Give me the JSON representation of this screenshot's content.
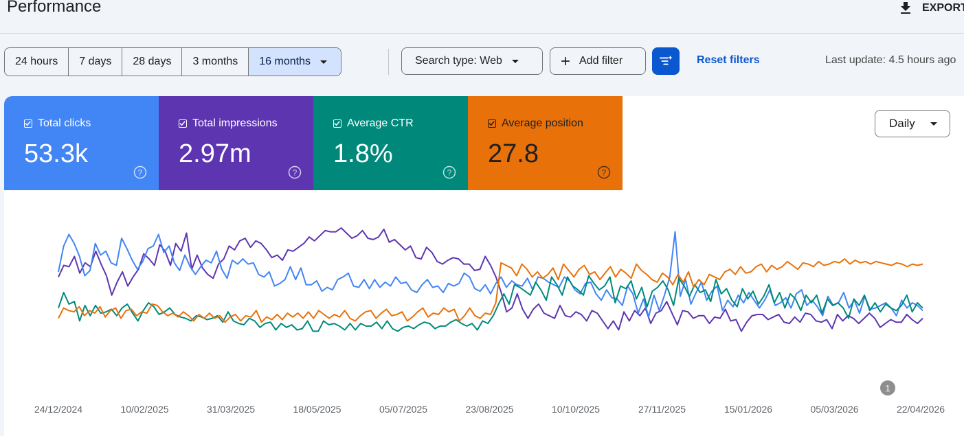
{
  "header": {
    "title": "Performance",
    "export_label": "EXPORT"
  },
  "date_ranges": [
    {
      "label": "24 hours",
      "selected": false
    },
    {
      "label": "7 days",
      "selected": false
    },
    {
      "label": "28 days",
      "selected": false
    },
    {
      "label": "3 months",
      "selected": false
    },
    {
      "label": "16 months",
      "selected": true
    }
  ],
  "toolbar": {
    "search_type_label": "Search type: Web",
    "add_filter_label": "Add filter",
    "reset_filters_label": "Reset filters",
    "last_update": "Last update: 4.5 hours ago"
  },
  "metrics": [
    {
      "label": "Total clicks",
      "value": "53.3k",
      "color": "#4285f4",
      "text_color": "#ffffff"
    },
    {
      "label": "Total impressions",
      "value": "2.97m",
      "color": "#5e35b1",
      "text_color": "#ffffff"
    },
    {
      "label": "Average CTR",
      "value": "1.8%",
      "color": "#00897b",
      "text_color": "#ffffff"
    },
    {
      "label": "Average position",
      "value": "27.8",
      "color": "#e8710a",
      "text_color": "#1f1f1f"
    }
  ],
  "granularity": {
    "selected": "Daily"
  },
  "chart_data": {
    "type": "line",
    "x_tick_labels": [
      "24/12/2024",
      "10/02/2025",
      "31/03/2025",
      "18/05/2025",
      "05/07/2025",
      "23/08/2025",
      "10/10/2025",
      "27/11/2025",
      "15/01/2026",
      "05/03/2026",
      "22/04/2026"
    ],
    "annotation_badge": "1",
    "grid": false,
    "series": [
      {
        "color": "#5e35b1",
        "values": [
          0.62,
          0.71,
          0.7,
          0.78,
          0.65,
          0.73,
          0.7,
          0.82,
          0.72,
          0.63,
          0.48,
          0.58,
          0.66,
          0.55,
          0.62,
          0.68,
          0.8,
          0.76,
          0.71,
          0.87,
          0.82,
          0.71,
          0.88,
          0.82,
          0.96,
          0.68,
          0.79,
          0.69,
          0.64,
          0.61,
          0.72,
          0.76,
          0.86,
          0.83,
          0.9,
          0.92,
          0.85,
          0.9,
          0.88,
          0.83,
          0.77,
          0.79,
          0.75,
          0.83,
          0.82,
          0.85,
          0.88,
          0.93,
          0.9,
          0.94,
          0.98,
          0.97,
          0.97,
          1.0,
          0.96,
          0.92,
          0.94,
          0.98,
          0.92,
          0.91,
          0.93,
          0.99,
          0.89,
          0.91,
          0.87,
          0.83,
          0.86,
          0.77,
          0.76,
          0.85,
          0.81,
          0.74,
          0.72,
          0.75,
          0.77,
          0.76,
          0.72,
          0.72,
          0.67,
          0.68,
          0.78,
          0.71,
          0.62,
          0.5,
          0.35,
          0.38,
          0.49,
          0.37,
          0.3,
          0.37,
          0.41,
          0.34,
          0.32,
          0.3,
          0.4,
          0.32,
          0.31,
          0.35,
          0.33,
          0.28,
          0.36,
          0.34,
          0.28,
          0.22,
          0.28,
          0.21,
          0.35,
          0.28,
          0.36,
          0.32,
          0.38,
          0.26,
          0.34,
          0.36,
          0.43,
          0.34,
          0.25,
          0.36,
          0.35,
          0.3,
          0.32,
          0.32,
          0.26,
          0.31,
          0.3,
          0.37,
          0.28,
          0.29,
          0.2,
          0.27,
          0.32,
          0.33,
          0.33,
          0.29,
          0.31,
          0.33,
          0.27,
          0.26,
          0.31,
          0.27,
          0.34,
          0.33,
          0.28,
          0.27,
          0.29,
          0.22,
          0.33,
          0.28,
          0.32,
          0.3,
          0.26,
          0.3,
          0.34,
          0.3,
          0.23,
          0.26,
          0.29,
          0.27,
          0.27,
          0.33,
          0.29,
          0.26,
          0.3
        ]
      },
      {
        "color": "#4285f4",
        "values": [
          0.66,
          0.86,
          0.95,
          0.88,
          0.78,
          0.63,
          0.67,
          0.88,
          0.79,
          0.82,
          0.73,
          0.71,
          0.92,
          0.84,
          0.75,
          0.68,
          0.74,
          0.84,
          0.86,
          0.95,
          0.81,
          0.86,
          0.73,
          0.67,
          0.79,
          0.7,
          0.64,
          0.7,
          0.75,
          0.73,
          0.82,
          0.68,
          0.61,
          0.75,
          0.72,
          0.76,
          0.72,
          0.73,
          0.64,
          0.62,
          0.66,
          0.55,
          0.57,
          0.6,
          0.7,
          0.6,
          0.69,
          0.56,
          0.56,
          0.59,
          0.51,
          0.54,
          0.52,
          0.6,
          0.62,
          0.65,
          0.55,
          0.54,
          0.6,
          0.53,
          0.6,
          0.54,
          0.58,
          0.55,
          0.62,
          0.57,
          0.58,
          0.52,
          0.5,
          0.56,
          0.6,
          0.54,
          0.55,
          0.5,
          0.57,
          0.55,
          0.57,
          0.65,
          0.62,
          0.53,
          0.51,
          0.56,
          0.49,
          0.57,
          0.62,
          0.54,
          0.59,
          0.56,
          0.55,
          0.61,
          0.52,
          0.62,
          0.61,
          0.58,
          0.56,
          0.54,
          0.62,
          0.59,
          0.52,
          0.49,
          0.57,
          0.58,
          0.49,
          0.44,
          0.52,
          0.46,
          0.45,
          0.4,
          0.55,
          0.49,
          0.34,
          0.45,
          0.31,
          0.48,
          0.36,
          0.48,
          0.62,
          0.97,
          0.47,
          0.6,
          0.41,
          0.5,
          0.58,
          0.44,
          0.51,
          0.55,
          0.36,
          0.44,
          0.39,
          0.48,
          0.42,
          0.5,
          0.44,
          0.38,
          0.44,
          0.52,
          0.4,
          0.42,
          0.46,
          0.38,
          0.49,
          0.52,
          0.4,
          0.44,
          0.39,
          0.32,
          0.47,
          0.4,
          0.42,
          0.5,
          0.38,
          0.44,
          0.34,
          0.47,
          0.37,
          0.38,
          0.4,
          0.42,
          0.38,
          0.32,
          0.44,
          0.38,
          0.42,
          0.4,
          0.36
        ]
      },
      {
        "color": "#00897b",
        "values": [
          0.38,
          0.5,
          0.41,
          0.43,
          0.28,
          0.4,
          0.32,
          0.4,
          0.34,
          0.35,
          0.37,
          0.32,
          0.38,
          0.41,
          0.34,
          0.28,
          0.36,
          0.42,
          0.39,
          0.33,
          0.35,
          0.38,
          0.33,
          0.31,
          0.3,
          0.28,
          0.32,
          0.31,
          0.29,
          0.3,
          0.32,
          0.27,
          0.35,
          0.28,
          0.26,
          0.25,
          0.3,
          0.28,
          0.23,
          0.26,
          0.27,
          0.21,
          0.26,
          0.23,
          0.25,
          0.21,
          0.22,
          0.28,
          0.2,
          0.2,
          0.28,
          0.25,
          0.26,
          0.24,
          0.21,
          0.26,
          0.21,
          0.26,
          0.24,
          0.24,
          0.27,
          0.22,
          0.28,
          0.22,
          0.2,
          0.23,
          0.24,
          0.22,
          0.25,
          0.27,
          0.26,
          0.22,
          0.24,
          0.24,
          0.27,
          0.29,
          0.26,
          0.24,
          0.26,
          0.21,
          0.28,
          0.26,
          0.32,
          0.41,
          0.49,
          0.41,
          0.56,
          0.54,
          0.51,
          0.48,
          0.58,
          0.52,
          0.44,
          0.62,
          0.56,
          0.48,
          0.62,
          0.55,
          0.52,
          0.48,
          0.63,
          0.57,
          0.52,
          0.55,
          0.62,
          0.42,
          0.55,
          0.53,
          0.59,
          0.45,
          0.54,
          0.39,
          0.51,
          0.54,
          0.59,
          0.52,
          0.4,
          0.61,
          0.55,
          0.47,
          0.56,
          0.5,
          0.52,
          0.43,
          0.6,
          0.49,
          0.53,
          0.44,
          0.39,
          0.53,
          0.45,
          0.51,
          0.41,
          0.47,
          0.56,
          0.42,
          0.5,
          0.38,
          0.49,
          0.45,
          0.36,
          0.48,
          0.42,
          0.48,
          0.34,
          0.45,
          0.4,
          0.42,
          0.38,
          0.3,
          0.45,
          0.4,
          0.48,
          0.36,
          0.42,
          0.35,
          0.41,
          0.38,
          0.36,
          0.4,
          0.48,
          0.35,
          0.42,
          0.38
        ]
      },
      {
        "color": "#e8710a",
        "values": [
          0.3,
          0.38,
          0.36,
          0.35,
          0.39,
          0.32,
          0.36,
          0.34,
          0.39,
          0.31,
          0.36,
          0.38,
          0.3,
          0.36,
          0.37,
          0.32,
          0.35,
          0.34,
          0.41,
          0.4,
          0.35,
          0.32,
          0.34,
          0.31,
          0.35,
          0.32,
          0.28,
          0.33,
          0.3,
          0.34,
          0.3,
          0.32,
          0.27,
          0.31,
          0.33,
          0.28,
          0.32,
          0.31,
          0.36,
          0.27,
          0.31,
          0.29,
          0.33,
          0.29,
          0.34,
          0.31,
          0.34,
          0.3,
          0.35,
          0.3,
          0.36,
          0.33,
          0.3,
          0.33,
          0.31,
          0.36,
          0.3,
          0.28,
          0.32,
          0.35,
          0.36,
          0.3,
          0.34,
          0.37,
          0.32,
          0.33,
          0.35,
          0.28,
          0.31,
          0.35,
          0.38,
          0.31,
          0.34,
          0.33,
          0.38,
          0.35,
          0.37,
          0.28,
          0.32,
          0.38,
          0.32,
          0.3,
          0.34,
          0.33,
          0.42,
          0.73,
          0.71,
          0.69,
          0.63,
          0.72,
          0.68,
          0.62,
          0.66,
          0.61,
          0.64,
          0.69,
          0.6,
          0.72,
          0.67,
          0.62,
          0.68,
          0.71,
          0.64,
          0.66,
          0.6,
          0.65,
          0.7,
          0.62,
          0.68,
          0.65,
          0.61,
          0.72,
          0.67,
          0.64,
          0.6,
          0.58,
          0.65,
          0.62,
          0.56,
          0.64,
          0.58,
          0.66,
          0.54,
          0.6,
          0.56,
          0.64,
          0.62,
          0.6,
          0.66,
          0.68,
          0.64,
          0.7,
          0.65,
          0.66,
          0.7,
          0.72,
          0.66,
          0.71,
          0.68,
          0.7,
          0.74,
          0.71,
          0.68,
          0.73,
          0.72,
          0.7,
          0.74,
          0.71,
          0.72,
          0.74,
          0.73,
          0.76,
          0.72,
          0.75,
          0.73,
          0.74,
          0.72,
          0.74,
          0.73,
          0.72,
          0.71,
          0.73,
          0.72,
          0.7,
          0.72,
          0.71,
          0.72
        ]
      }
    ]
  }
}
